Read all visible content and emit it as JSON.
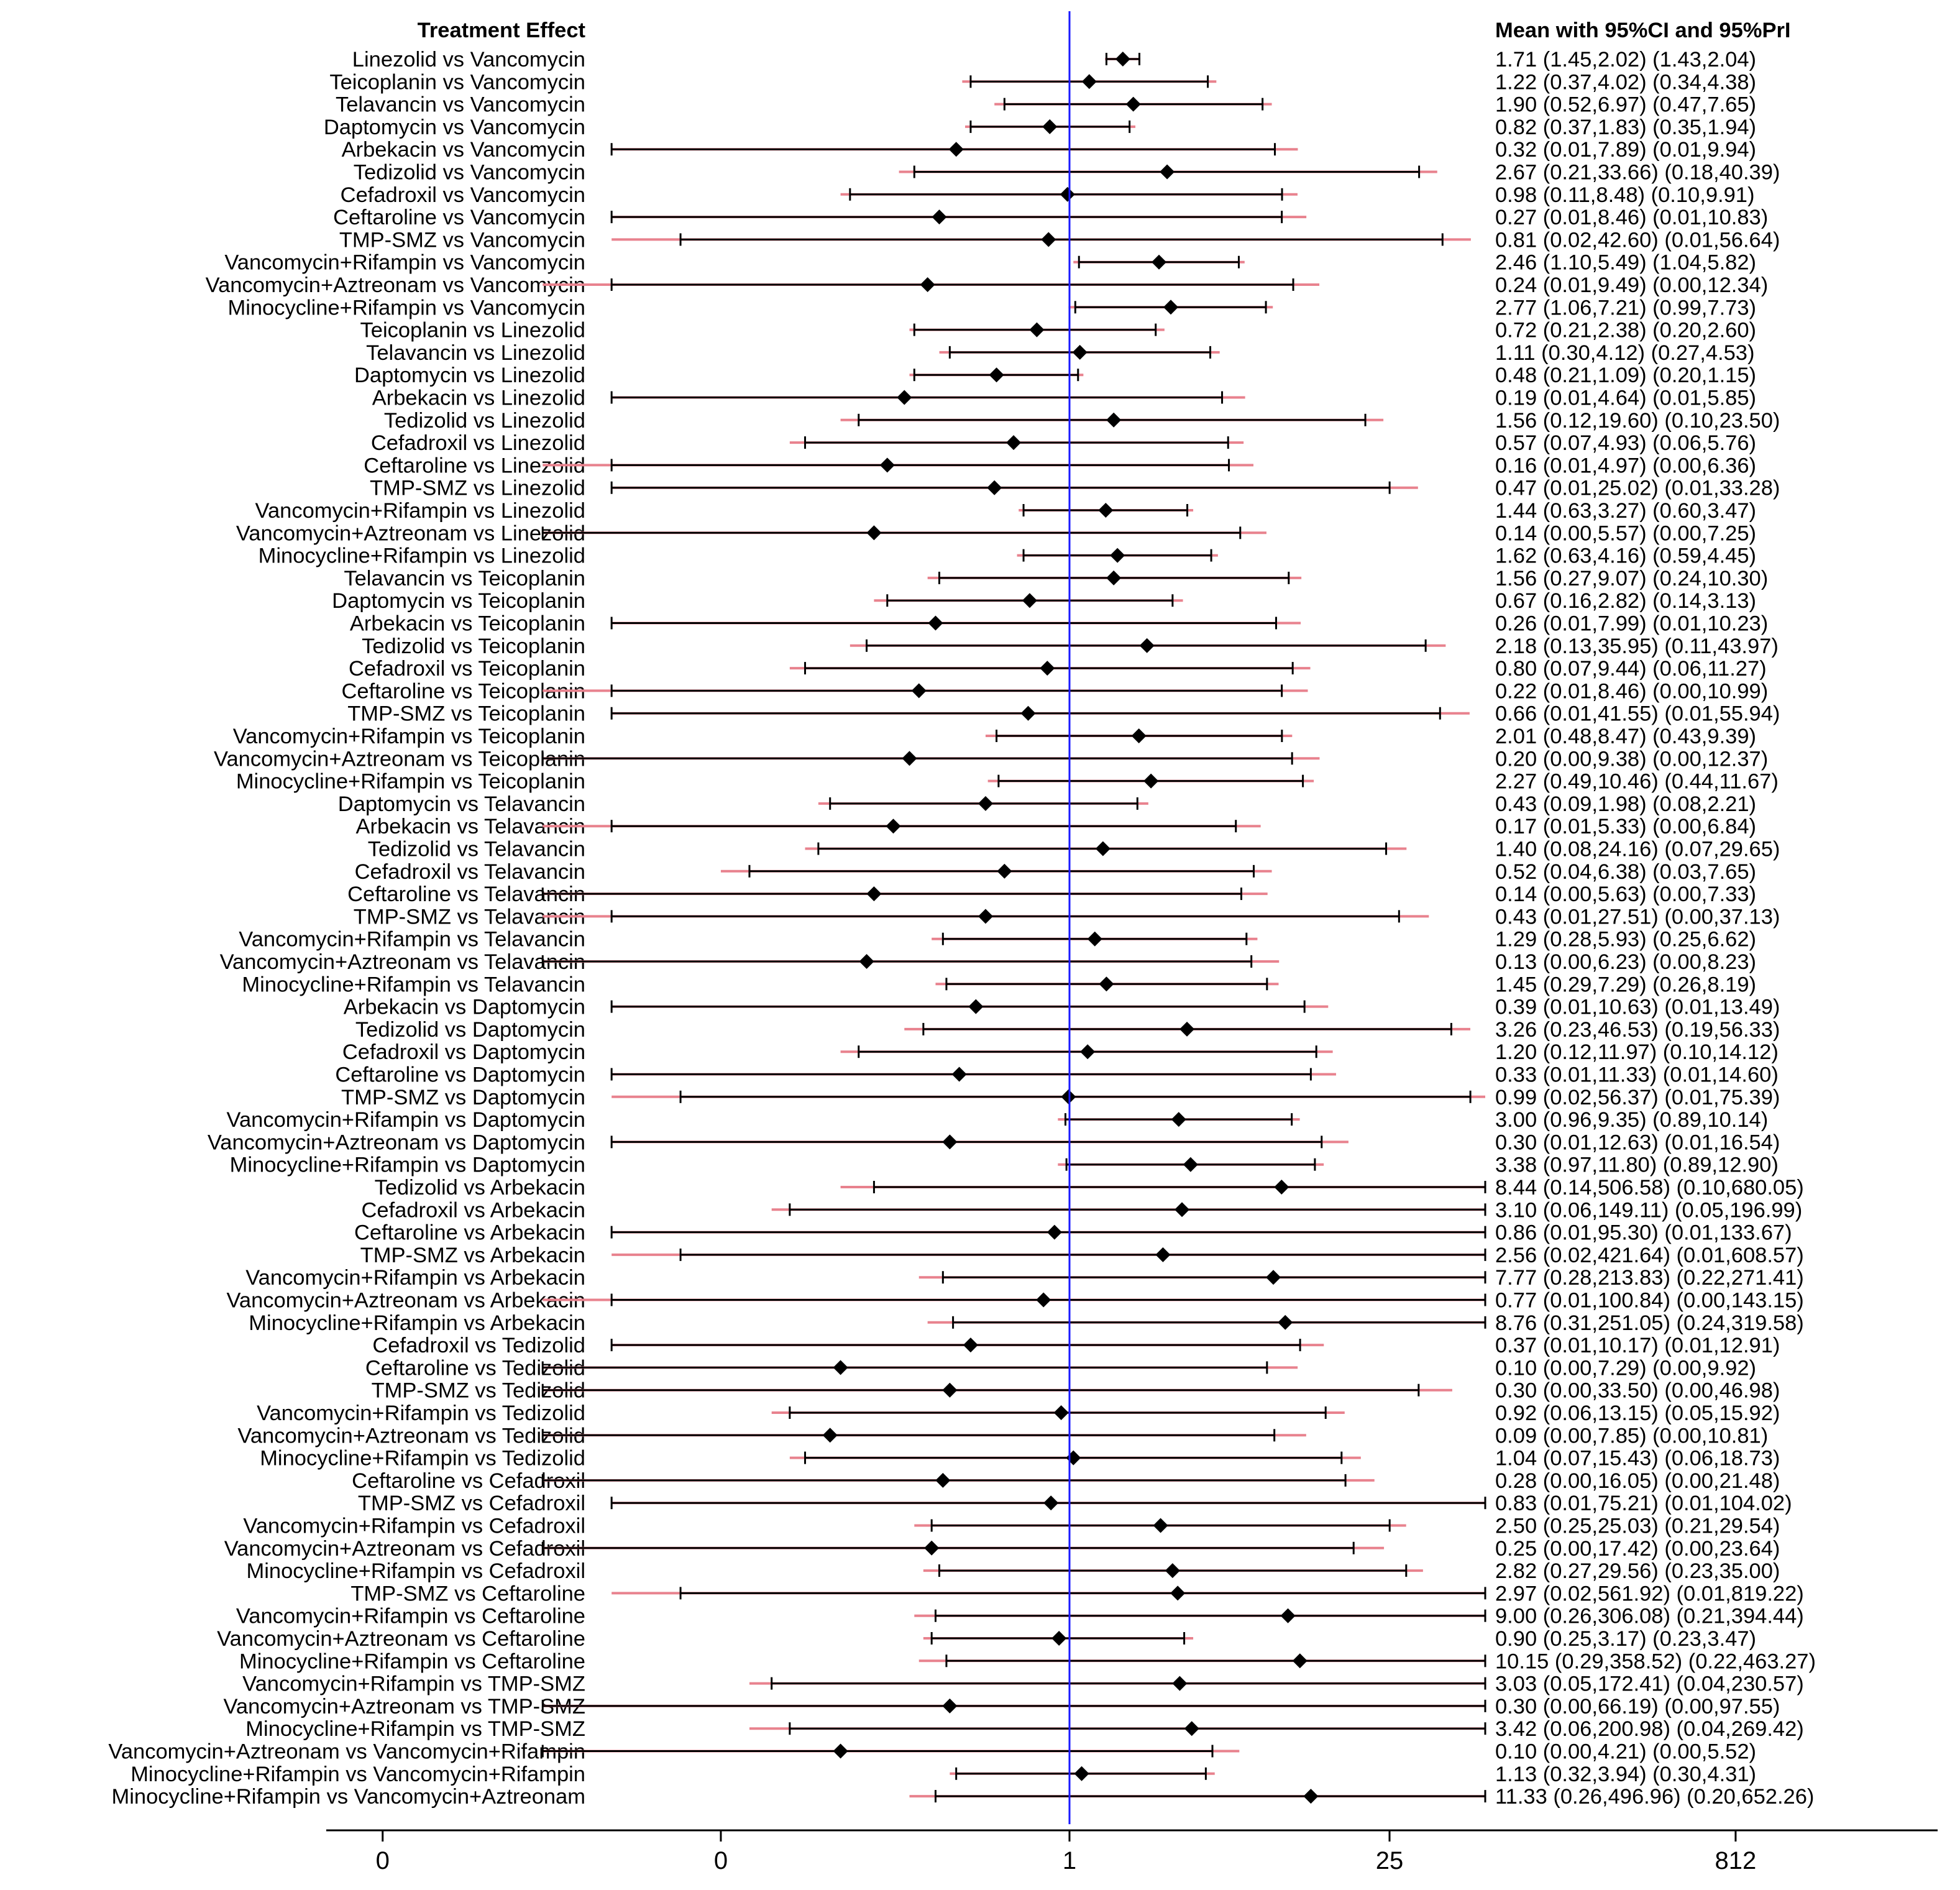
{
  "chart_data": {
    "type": "forest",
    "left_header": "Treatment Effect",
    "right_header": "Mean with 95%CI and 95%PrI",
    "reference_value": 1,
    "reference_color": "#1a1aff",
    "ci_color": "#000000",
    "pri_color": "#e8828e",
    "x_scale": "log",
    "x_tick_labels": [
      "0",
      "0",
      "1",
      "25",
      "812"
    ],
    "x_tick_values": [
      0.001,
      0.03,
      1,
      25,
      812
    ],
    "rows": [
      {
        "label": "Linezolid vs Vancomycin",
        "mean": 1.71,
        "ci_low": 1.45,
        "ci_high": 2.02,
        "pri_low": 1.43,
        "pri_high": 2.04,
        "text": "1.71 (1.45,2.02)  (1.43,2.04)"
      },
      {
        "label": "Teicoplanin vs Vancomycin",
        "mean": 1.22,
        "ci_low": 0.37,
        "ci_high": 4.02,
        "pri_low": 0.34,
        "pri_high": 4.38,
        "text": "1.22 (0.37,4.02)  (0.34,4.38)"
      },
      {
        "label": "Telavancin vs Vancomycin",
        "mean": 1.9,
        "ci_low": 0.52,
        "ci_high": 6.97,
        "pri_low": 0.47,
        "pri_high": 7.65,
        "text": "1.90 (0.52,6.97)  (0.47,7.65)"
      },
      {
        "label": "Daptomycin vs Vancomycin",
        "mean": 0.82,
        "ci_low": 0.37,
        "ci_high": 1.83,
        "pri_low": 0.35,
        "pri_high": 1.94,
        "text": "0.82 (0.37,1.83)  (0.35,1.94)"
      },
      {
        "label": "Arbekacin vs Vancomycin",
        "mean": 0.32,
        "ci_low": 0.01,
        "ci_high": 7.89,
        "pri_low": 0.01,
        "pri_high": 9.94,
        "text": "0.32 (0.01,7.89)  (0.01,9.94)"
      },
      {
        "label": "Tedizolid vs Vancomycin",
        "mean": 2.67,
        "ci_low": 0.21,
        "ci_high": 33.66,
        "pri_low": 0.18,
        "pri_high": 40.39,
        "text": "2.67 (0.21,33.66)  (0.18,40.39)"
      },
      {
        "label": "Cefadroxil vs Vancomycin",
        "mean": 0.98,
        "ci_low": 0.11,
        "ci_high": 8.48,
        "pri_low": 0.1,
        "pri_high": 9.91,
        "text": "0.98 (0.11,8.48)  (0.10,9.91)"
      },
      {
        "label": "Ceftaroline vs Vancomycin",
        "mean": 0.27,
        "ci_low": 0.01,
        "ci_high": 8.46,
        "pri_low": 0.01,
        "pri_high": 10.83,
        "text": "0.27 (0.01,8.46)  (0.01,10.83)"
      },
      {
        "label": "TMP-SMZ vs Vancomycin",
        "mean": 0.81,
        "ci_low": 0.02,
        "ci_high": 42.6,
        "pri_low": 0.01,
        "pri_high": 56.64,
        "text": "0.81 (0.02,42.60)  (0.01,56.64)"
      },
      {
        "label": "Vancomycin+Rifampin vs Vancomycin",
        "mean": 2.46,
        "ci_low": 1.1,
        "ci_high": 5.49,
        "pri_low": 1.04,
        "pri_high": 5.82,
        "text": "2.46 (1.10,5.49)  (1.04,5.82)"
      },
      {
        "label": "Vancomycin+Aztreonam vs Vancomycin",
        "mean": 0.24,
        "ci_low": 0.01,
        "ci_high": 9.49,
        "pri_low": 0.0,
        "pri_high": 12.34,
        "text": "0.24 (0.01,9.49)  (0.00,12.34)"
      },
      {
        "label": "Minocycline+Rifampin vs Vancomycin",
        "mean": 2.77,
        "ci_low": 1.06,
        "ci_high": 7.21,
        "pri_low": 0.99,
        "pri_high": 7.73,
        "text": "2.77 (1.06,7.21)  (0.99,7.73)"
      },
      {
        "label": "Teicoplanin vs Linezolid",
        "mean": 0.72,
        "ci_low": 0.21,
        "ci_high": 2.38,
        "pri_low": 0.2,
        "pri_high": 2.6,
        "text": "0.72 (0.21,2.38)  (0.20,2.60)"
      },
      {
        "label": "Telavancin vs Linezolid",
        "mean": 1.11,
        "ci_low": 0.3,
        "ci_high": 4.12,
        "pri_low": 0.27,
        "pri_high": 4.53,
        "text": "1.11 (0.30,4.12)  (0.27,4.53)"
      },
      {
        "label": "Daptomycin vs Linezolid",
        "mean": 0.48,
        "ci_low": 0.21,
        "ci_high": 1.09,
        "pri_low": 0.2,
        "pri_high": 1.15,
        "text": "0.48 (0.21,1.09)  (0.20,1.15)"
      },
      {
        "label": "Arbekacin vs Linezolid",
        "mean": 0.19,
        "ci_low": 0.01,
        "ci_high": 4.64,
        "pri_low": 0.01,
        "pri_high": 5.85,
        "text": "0.19 (0.01,4.64)  (0.01,5.85)"
      },
      {
        "label": "Tedizolid vs Linezolid",
        "mean": 1.56,
        "ci_low": 0.12,
        "ci_high": 19.6,
        "pri_low": 0.1,
        "pri_high": 23.5,
        "text": "1.56 (0.12,19.60)  (0.10,23.50)"
      },
      {
        "label": "Cefadroxil vs Linezolid",
        "mean": 0.57,
        "ci_low": 0.07,
        "ci_high": 4.93,
        "pri_low": 0.06,
        "pri_high": 5.76,
        "text": "0.57 (0.07,4.93)  (0.06,5.76)"
      },
      {
        "label": "Ceftaroline vs Linezolid",
        "mean": 0.16,
        "ci_low": 0.01,
        "ci_high": 4.97,
        "pri_low": 0.0,
        "pri_high": 6.36,
        "text": "0.16 (0.01,4.97)  (0.00,6.36)"
      },
      {
        "label": "TMP-SMZ vs Linezolid",
        "mean": 0.47,
        "ci_low": 0.01,
        "ci_high": 25.02,
        "pri_low": 0.01,
        "pri_high": 33.28,
        "text": "0.47 (0.01,25.02)  (0.01,33.28)"
      },
      {
        "label": "Vancomycin+Rifampin vs Linezolid",
        "mean": 1.44,
        "ci_low": 0.63,
        "ci_high": 3.27,
        "pri_low": 0.6,
        "pri_high": 3.47,
        "text": "1.44 (0.63,3.27)  (0.60,3.47)"
      },
      {
        "label": "Vancomycin+Aztreonam vs Linezolid",
        "mean": 0.14,
        "ci_low": 0.0,
        "ci_high": 5.57,
        "pri_low": 0.0,
        "pri_high": 7.25,
        "text": "0.14 (0.00,5.57)  (0.00,7.25)"
      },
      {
        "label": "Minocycline+Rifampin vs Linezolid",
        "mean": 1.62,
        "ci_low": 0.63,
        "ci_high": 4.16,
        "pri_low": 0.59,
        "pri_high": 4.45,
        "text": "1.62 (0.63,4.16)  (0.59,4.45)"
      },
      {
        "label": "Telavancin vs Teicoplanin",
        "mean": 1.56,
        "ci_low": 0.27,
        "ci_high": 9.07,
        "pri_low": 0.24,
        "pri_high": 10.3,
        "text": "1.56 (0.27,9.07)  (0.24,10.30)"
      },
      {
        "label": "Daptomycin vs Teicoplanin",
        "mean": 0.67,
        "ci_low": 0.16,
        "ci_high": 2.82,
        "pri_low": 0.14,
        "pri_high": 3.13,
        "text": "0.67 (0.16,2.82)  (0.14,3.13)"
      },
      {
        "label": "Arbekacin vs Teicoplanin",
        "mean": 0.26,
        "ci_low": 0.01,
        "ci_high": 7.99,
        "pri_low": 0.01,
        "pri_high": 10.23,
        "text": "0.26 (0.01,7.99)  (0.01,10.23)"
      },
      {
        "label": "Tedizolid vs Teicoplanin",
        "mean": 2.18,
        "ci_low": 0.13,
        "ci_high": 35.95,
        "pri_low": 0.11,
        "pri_high": 43.97,
        "text": "2.18 (0.13,35.95)  (0.11,43.97)"
      },
      {
        "label": "Cefadroxil vs Teicoplanin",
        "mean": 0.8,
        "ci_low": 0.07,
        "ci_high": 9.44,
        "pri_low": 0.06,
        "pri_high": 11.27,
        "text": "0.80 (0.07,9.44)  (0.06,11.27)"
      },
      {
        "label": "Ceftaroline vs Teicoplanin",
        "mean": 0.22,
        "ci_low": 0.01,
        "ci_high": 8.46,
        "pri_low": 0.0,
        "pri_high": 10.99,
        "text": "0.22 (0.01,8.46)  (0.00,10.99)"
      },
      {
        "label": "TMP-SMZ vs Teicoplanin",
        "mean": 0.66,
        "ci_low": 0.01,
        "ci_high": 41.55,
        "pri_low": 0.01,
        "pri_high": 55.94,
        "text": "0.66 (0.01,41.55)  (0.01,55.94)"
      },
      {
        "label": "Vancomycin+Rifampin vs Teicoplanin",
        "mean": 2.01,
        "ci_low": 0.48,
        "ci_high": 8.47,
        "pri_low": 0.43,
        "pri_high": 9.39,
        "text": "2.01 (0.48,8.47)  (0.43,9.39)"
      },
      {
        "label": "Vancomycin+Aztreonam vs Teicoplanin",
        "mean": 0.2,
        "ci_low": 0.0,
        "ci_high": 9.38,
        "pri_low": 0.0,
        "pri_high": 12.37,
        "text": "0.20 (0.00,9.38)  (0.00,12.37)"
      },
      {
        "label": "Minocycline+Rifampin vs Teicoplanin",
        "mean": 2.27,
        "ci_low": 0.49,
        "ci_high": 10.46,
        "pri_low": 0.44,
        "pri_high": 11.67,
        "text": "2.27 (0.49,10.46)  (0.44,11.67)"
      },
      {
        "label": "Daptomycin vs Telavancin",
        "mean": 0.43,
        "ci_low": 0.09,
        "ci_high": 1.98,
        "pri_low": 0.08,
        "pri_high": 2.21,
        "text": "0.43 (0.09,1.98)  (0.08,2.21)"
      },
      {
        "label": "Arbekacin vs Telavancin",
        "mean": 0.17,
        "ci_low": 0.01,
        "ci_high": 5.33,
        "pri_low": 0.0,
        "pri_high": 6.84,
        "text": "0.17 (0.01,5.33)  (0.00,6.84)"
      },
      {
        "label": "Tedizolid vs Telavancin",
        "mean": 1.4,
        "ci_low": 0.08,
        "ci_high": 24.16,
        "pri_low": 0.07,
        "pri_high": 29.65,
        "text": "1.40 (0.08,24.16)  (0.07,29.65)"
      },
      {
        "label": "Cefadroxil vs Telavancin",
        "mean": 0.52,
        "ci_low": 0.04,
        "ci_high": 6.38,
        "pri_low": 0.03,
        "pri_high": 7.65,
        "text": "0.52 (0.04,6.38)  (0.03,7.65)"
      },
      {
        "label": "Ceftaroline vs Telavancin",
        "mean": 0.14,
        "ci_low": 0.0,
        "ci_high": 5.63,
        "pri_low": 0.0,
        "pri_high": 7.33,
        "text": "0.14 (0.00,5.63)  (0.00,7.33)"
      },
      {
        "label": "TMP-SMZ vs Telavancin",
        "mean": 0.43,
        "ci_low": 0.01,
        "ci_high": 27.51,
        "pri_low": 0.0,
        "pri_high": 37.13,
        "text": "0.43 (0.01,27.51)  (0.00,37.13)"
      },
      {
        "label": "Vancomycin+Rifampin vs Telavancin",
        "mean": 1.29,
        "ci_low": 0.28,
        "ci_high": 5.93,
        "pri_low": 0.25,
        "pri_high": 6.62,
        "text": "1.29 (0.28,5.93)  (0.25,6.62)"
      },
      {
        "label": "Vancomycin+Aztreonam vs Telavancin",
        "mean": 0.13,
        "ci_low": 0.0,
        "ci_high": 6.23,
        "pri_low": 0.0,
        "pri_high": 8.23,
        "text": "0.13 (0.00,6.23)  (0.00,8.23)"
      },
      {
        "label": "Minocycline+Rifampin vs Telavancin",
        "mean": 1.45,
        "ci_low": 0.29,
        "ci_high": 7.29,
        "pri_low": 0.26,
        "pri_high": 8.19,
        "text": "1.45 (0.29,7.29)  (0.26,8.19)"
      },
      {
        "label": "Arbekacin vs Daptomycin",
        "mean": 0.39,
        "ci_low": 0.01,
        "ci_high": 10.63,
        "pri_low": 0.01,
        "pri_high": 13.49,
        "text": "0.39 (0.01,10.63)  (0.01,13.49)"
      },
      {
        "label": "Tedizolid vs Daptomycin",
        "mean": 3.26,
        "ci_low": 0.23,
        "ci_high": 46.53,
        "pri_low": 0.19,
        "pri_high": 56.33,
        "text": "3.26 (0.23,46.53)  (0.19,56.33)"
      },
      {
        "label": "Cefadroxil vs Daptomycin",
        "mean": 1.2,
        "ci_low": 0.12,
        "ci_high": 11.97,
        "pri_low": 0.1,
        "pri_high": 14.12,
        "text": "1.20 (0.12,11.97)  (0.10,14.12)"
      },
      {
        "label": "Ceftaroline vs Daptomycin",
        "mean": 0.33,
        "ci_low": 0.01,
        "ci_high": 11.33,
        "pri_low": 0.01,
        "pri_high": 14.6,
        "text": "0.33 (0.01,11.33)  (0.01,14.60)"
      },
      {
        "label": "TMP-SMZ vs Daptomycin",
        "mean": 0.99,
        "ci_low": 0.02,
        "ci_high": 56.37,
        "pri_low": 0.01,
        "pri_high": 75.39,
        "text": "0.99 (0.02,56.37)  (0.01,75.39)"
      },
      {
        "label": "Vancomycin+Rifampin vs Daptomycin",
        "mean": 3.0,
        "ci_low": 0.96,
        "ci_high": 9.35,
        "pri_low": 0.89,
        "pri_high": 10.14,
        "text": "3.00 (0.96,9.35)  (0.89,10.14)"
      },
      {
        "label": "Vancomycin+Aztreonam vs Daptomycin",
        "mean": 0.3,
        "ci_low": 0.01,
        "ci_high": 12.63,
        "pri_low": 0.01,
        "pri_high": 16.54,
        "text": "0.30 (0.01,12.63)  (0.01,16.54)"
      },
      {
        "label": "Minocycline+Rifampin vs Daptomycin",
        "mean": 3.38,
        "ci_low": 0.97,
        "ci_high": 11.8,
        "pri_low": 0.89,
        "pri_high": 12.9,
        "text": "3.38 (0.97,11.80)  (0.89,12.90)"
      },
      {
        "label": "Tedizolid vs Arbekacin",
        "mean": 8.44,
        "ci_low": 0.14,
        "ci_high": 506.58,
        "pri_low": 0.1,
        "pri_high": 680.05,
        "text": "8.44 (0.14,506.58)  (0.10,680.05)"
      },
      {
        "label": "Cefadroxil vs Arbekacin",
        "mean": 3.1,
        "ci_low": 0.06,
        "ci_high": 149.11,
        "pri_low": 0.05,
        "pri_high": 196.99,
        "text": "3.10 (0.06,149.11)  (0.05,196.99)"
      },
      {
        "label": "Ceftaroline vs Arbekacin",
        "mean": 0.86,
        "ci_low": 0.01,
        "ci_high": 95.3,
        "pri_low": 0.01,
        "pri_high": 133.67,
        "text": "0.86 (0.01,95.30)  (0.01,133.67)"
      },
      {
        "label": "TMP-SMZ vs Arbekacin",
        "mean": 2.56,
        "ci_low": 0.02,
        "ci_high": 421.64,
        "pri_low": 0.01,
        "pri_high": 608.57,
        "text": "2.56 (0.02,421.64)  (0.01,608.57)"
      },
      {
        "label": "Vancomycin+Rifampin vs Arbekacin",
        "mean": 7.77,
        "ci_low": 0.28,
        "ci_high": 213.83,
        "pri_low": 0.22,
        "pri_high": 271.41,
        "text": "7.77 (0.28,213.83)  (0.22,271.41)"
      },
      {
        "label": "Vancomycin+Aztreonam vs Arbekacin",
        "mean": 0.77,
        "ci_low": 0.01,
        "ci_high": 100.84,
        "pri_low": 0.0,
        "pri_high": 143.15,
        "text": "0.77 (0.01,100.84)  (0.00,143.15)"
      },
      {
        "label": "Minocycline+Rifampin vs Arbekacin",
        "mean": 8.76,
        "ci_low": 0.31,
        "ci_high": 251.05,
        "pri_low": 0.24,
        "pri_high": 319.58,
        "text": "8.76 (0.31,251.05)  (0.24,319.58)"
      },
      {
        "label": "Cefadroxil vs Tedizolid",
        "mean": 0.37,
        "ci_low": 0.01,
        "ci_high": 10.17,
        "pri_low": 0.01,
        "pri_high": 12.91,
        "text": "0.37 (0.01,10.17)  (0.01,12.91)"
      },
      {
        "label": "Ceftaroline vs Tedizolid",
        "mean": 0.1,
        "ci_low": 0.0,
        "ci_high": 7.29,
        "pri_low": 0.0,
        "pri_high": 9.92,
        "text": "0.10 (0.00,7.29)  (0.00,9.92)"
      },
      {
        "label": "TMP-SMZ vs Tedizolid",
        "mean": 0.3,
        "ci_low": 0.0,
        "ci_high": 33.5,
        "pri_low": 0.0,
        "pri_high": 46.98,
        "text": "0.30 (0.00,33.50)  (0.00,46.98)"
      },
      {
        "label": "Vancomycin+Rifampin vs Tedizolid",
        "mean": 0.92,
        "ci_low": 0.06,
        "ci_high": 13.15,
        "pri_low": 0.05,
        "pri_high": 15.92,
        "text": "0.92 (0.06,13.15)  (0.05,15.92)"
      },
      {
        "label": "Vancomycin+Aztreonam vs Tedizolid",
        "mean": 0.09,
        "ci_low": 0.0,
        "ci_high": 7.85,
        "pri_low": 0.0,
        "pri_high": 10.81,
        "text": "0.09 (0.00,7.85)  (0.00,10.81)"
      },
      {
        "label": "Minocycline+Rifampin vs Tedizolid",
        "mean": 1.04,
        "ci_low": 0.07,
        "ci_high": 15.43,
        "pri_low": 0.06,
        "pri_high": 18.73,
        "text": "1.04 (0.07,15.43)  (0.06,18.73)"
      },
      {
        "label": "Ceftaroline vs Cefadroxil",
        "mean": 0.28,
        "ci_low": 0.0,
        "ci_high": 16.05,
        "pri_low": 0.0,
        "pri_high": 21.48,
        "text": "0.28 (0.00,16.05)  (0.00,21.48)"
      },
      {
        "label": "TMP-SMZ vs Cefadroxil",
        "mean": 0.83,
        "ci_low": 0.01,
        "ci_high": 75.21,
        "pri_low": 0.01,
        "pri_high": 104.02,
        "text": "0.83 (0.01,75.21)  (0.01,104.02)"
      },
      {
        "label": "Vancomycin+Rifampin vs Cefadroxil",
        "mean": 2.5,
        "ci_low": 0.25,
        "ci_high": 25.03,
        "pri_low": 0.21,
        "pri_high": 29.54,
        "text": "2.50 (0.25,25.03)  (0.21,29.54)"
      },
      {
        "label": "Vancomycin+Aztreonam vs Cefadroxil",
        "mean": 0.25,
        "ci_low": 0.0,
        "ci_high": 17.42,
        "pri_low": 0.0,
        "pri_high": 23.64,
        "text": "0.25 (0.00,17.42)  (0.00,23.64)"
      },
      {
        "label": "Minocycline+Rifampin vs Cefadroxil",
        "mean": 2.82,
        "ci_low": 0.27,
        "ci_high": 29.56,
        "pri_low": 0.23,
        "pri_high": 35.0,
        "text": "2.82 (0.27,29.56)  (0.23,35.00)"
      },
      {
        "label": "TMP-SMZ vs Ceftaroline",
        "mean": 2.97,
        "ci_low": 0.02,
        "ci_high": 561.92,
        "pri_low": 0.01,
        "pri_high": 819.22,
        "text": "2.97 (0.02,561.92)  (0.01,819.22)"
      },
      {
        "label": "Vancomycin+Rifampin vs Ceftaroline",
        "mean": 9.0,
        "ci_low": 0.26,
        "ci_high": 306.08,
        "pri_low": 0.21,
        "pri_high": 394.44,
        "text": "9.00 (0.26,306.08)  (0.21,394.44)"
      },
      {
        "label": "Vancomycin+Aztreonam vs Ceftaroline",
        "mean": 0.9,
        "ci_low": 0.25,
        "ci_high": 3.17,
        "pri_low": 0.23,
        "pri_high": 3.47,
        "text": "0.90 (0.25,3.17)  (0.23,3.47)"
      },
      {
        "label": "Minocycline+Rifampin vs Ceftaroline",
        "mean": 10.15,
        "ci_low": 0.29,
        "ci_high": 358.52,
        "pri_low": 0.22,
        "pri_high": 463.27,
        "text": "10.15 (0.29,358.52)  (0.22,463.27)"
      },
      {
        "label": "Vancomycin+Rifampin vs TMP-SMZ",
        "mean": 3.03,
        "ci_low": 0.05,
        "ci_high": 172.41,
        "pri_low": 0.04,
        "pri_high": 230.57,
        "text": "3.03 (0.05,172.41)  (0.04,230.57)"
      },
      {
        "label": "Vancomycin+Aztreonam vs TMP-SMZ",
        "mean": 0.3,
        "ci_low": 0.0,
        "ci_high": 66.19,
        "pri_low": 0.0,
        "pri_high": 97.55,
        "text": "0.30 (0.00,66.19)  (0.00,97.55)"
      },
      {
        "label": "Minocycline+Rifampin vs TMP-SMZ",
        "mean": 3.42,
        "ci_low": 0.06,
        "ci_high": 200.98,
        "pri_low": 0.04,
        "pri_high": 269.42,
        "text": "3.42 (0.06,200.98)  (0.04,269.42)"
      },
      {
        "label": "Vancomycin+Aztreonam vs Vancomycin+Rifampin",
        "mean": 0.1,
        "ci_low": 0.0,
        "ci_high": 4.21,
        "pri_low": 0.0,
        "pri_high": 5.52,
        "text": "0.10 (0.00,4.21)  (0.00,5.52)"
      },
      {
        "label": "Minocycline+Rifampin vs Vancomycin+Rifampin",
        "mean": 1.13,
        "ci_low": 0.32,
        "ci_high": 3.94,
        "pri_low": 0.3,
        "pri_high": 4.31,
        "text": "1.13 (0.32,3.94)  (0.30,4.31)"
      },
      {
        "label": "Minocycline+Rifampin vs Vancomycin+Aztreonam",
        "mean": 11.33,
        "ci_low": 0.26,
        "ci_high": 496.96,
        "pri_low": 0.2,
        "pri_high": 652.26,
        "text": "11.33 (0.26,496.96)  (0.20,652.26)"
      }
    ]
  }
}
